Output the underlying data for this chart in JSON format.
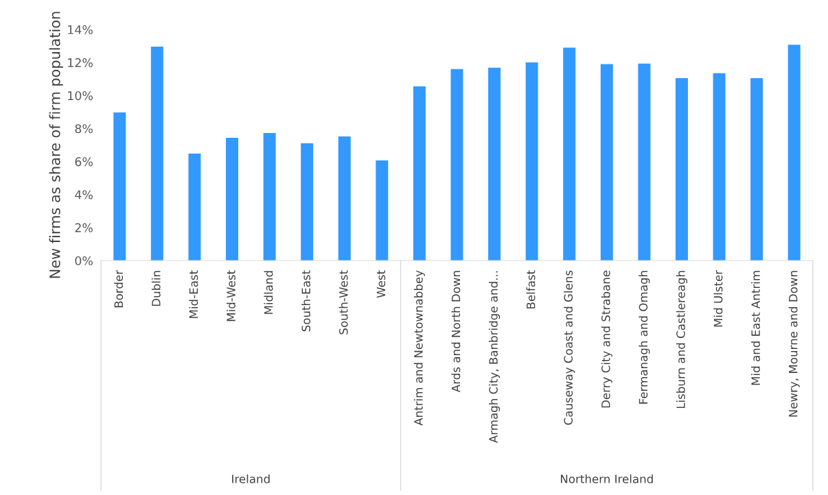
{
  "chart_data": {
    "type": "bar",
    "ylabel": "New firms as share of firm population",
    "categories": [
      "Border",
      "Dublin",
      "Mid-East",
      "Mid-West",
      "Midland",
      "South-East",
      "South-West",
      "West",
      "Antrim and Newtownabbey",
      "Ards and North Down",
      "Armagh City, Banbridge and...",
      "Belfast",
      "Causeway Coast and Glens",
      "Derry City and Strabane",
      "Fermanagh and Omagh",
      "Lisburn and Castlereagh",
      "Mid Ulster",
      "Mid and East Antrim",
      "Newry, Mourne and Down"
    ],
    "values": [
      8.97,
      12.96,
      6.48,
      7.44,
      7.73,
      7.1,
      7.52,
      6.07,
      10.55,
      11.6,
      11.68,
      12.01,
      12.9,
      11.9,
      11.93,
      11.05,
      11.35,
      11.05,
      13.08
    ],
    "color": "#3399ff",
    "ylim": [
      0,
      14
    ],
    "yticks": [
      {
        "value": 0,
        "label": "0%"
      },
      {
        "value": 2,
        "label": "2%"
      },
      {
        "value": 4,
        "label": "4%"
      },
      {
        "value": 6,
        "label": "6%"
      },
      {
        "value": 8,
        "label": "8%"
      },
      {
        "value": 10,
        "label": "10%"
      },
      {
        "value": 12,
        "label": "12%"
      },
      {
        "value": 14,
        "label": "14%"
      }
    ],
    "annotations": [
      "Ireland",
      "Northern Ireland"
    ],
    "grid": false,
    "legend": false
  }
}
